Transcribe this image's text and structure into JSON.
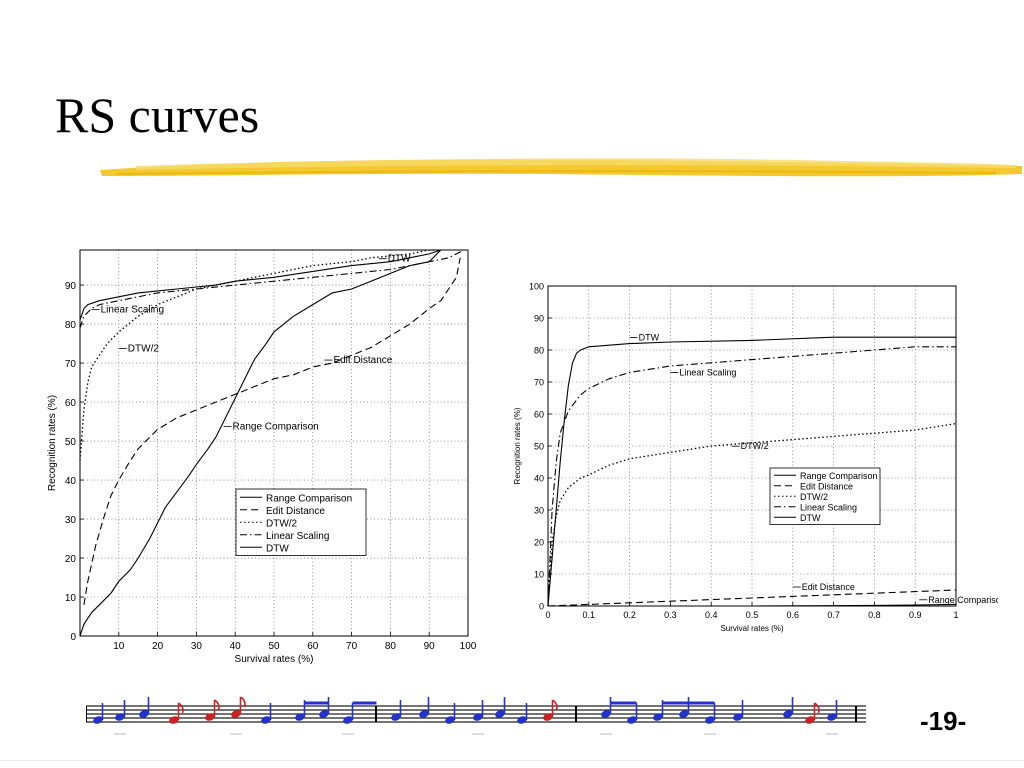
{
  "slide": {
    "title": "RS curves",
    "page_number": "-19-",
    "accent_color": "#f2c318",
    "note_colors": [
      "#2233cc",
      "#cc2222"
    ]
  },
  "chart_data": [
    {
      "type": "line",
      "xlabel": "Survival rates (%)",
      "ylabel": "Recognition rates (%)",
      "xlim": [
        0,
        100
      ],
      "ylim": [
        0,
        99
      ],
      "xticks": [
        10,
        20,
        30,
        40,
        50,
        60,
        70,
        80,
        90,
        100
      ],
      "yticks": [
        0,
        10,
        20,
        30,
        40,
        50,
        60,
        70,
        80,
        90
      ],
      "grid": true,
      "legend_position": "bottom-center",
      "series": [
        {
          "name": "Range Comparison",
          "style": "solid",
          "x": [
            0,
            1,
            3,
            5,
            8,
            10,
            13,
            15,
            18,
            20,
            22,
            25,
            28,
            30,
            33,
            35,
            37,
            40,
            43,
            45,
            48,
            50,
            55,
            60,
            65,
            70,
            75,
            80,
            85,
            90,
            93
          ],
          "y": [
            0,
            3,
            6,
            8,
            11,
            14,
            17,
            20,
            25,
            29,
            33,
            37,
            41,
            44,
            48,
            51,
            55,
            61,
            67,
            71,
            75,
            78,
            82,
            85,
            88,
            89,
            91,
            93,
            95,
            96,
            99
          ]
        },
        {
          "name": "Edit Distance",
          "style": "dashed",
          "x": [
            1,
            2,
            4,
            6,
            8,
            10,
            13,
            15,
            18,
            20,
            25,
            30,
            35,
            40,
            45,
            50,
            55,
            60,
            65,
            70,
            75,
            80,
            85,
            90,
            93,
            95,
            97,
            98
          ],
          "y": [
            8,
            14,
            23,
            30,
            36,
            40,
            45,
            48,
            51,
            53,
            56,
            58,
            60,
            62,
            64,
            66,
            67,
            69,
            70,
            72,
            74,
            77,
            80,
            84,
            86,
            89,
            92,
            97
          ]
        },
        {
          "name": "DTW/2",
          "style": "dotted",
          "x": [
            0,
            1,
            2,
            3,
            5,
            7,
            10,
            15,
            20,
            25,
            30,
            35,
            40,
            45,
            50,
            55,
            60,
            65,
            70,
            75,
            80,
            85,
            90,
            92
          ],
          "y": [
            45,
            58,
            65,
            69,
            72,
            75,
            78,
            82,
            85,
            87,
            89,
            90,
            91,
            92,
            93,
            94,
            95,
            95.5,
            96,
            97,
            97.5,
            98,
            99,
            99
          ]
        },
        {
          "name": "Linear Scaling",
          "style": "dashdot",
          "x": [
            0,
            1,
            3,
            5,
            10,
            15,
            20,
            25,
            30,
            40,
            50,
            60,
            70,
            80,
            85,
            90,
            95,
            99
          ],
          "y": [
            79,
            82,
            84,
            85,
            86,
            87,
            88,
            88.5,
            89,
            90,
            91,
            92,
            93,
            94,
            95,
            96,
            97,
            99
          ]
        },
        {
          "name": "DTW",
          "style": "solid",
          "x": [
            0,
            1,
            2,
            5,
            10,
            15,
            20,
            25,
            30,
            35,
            40,
            50,
            60,
            70,
            80,
            85,
            90,
            93
          ],
          "y": [
            81,
            84,
            85,
            86,
            87,
            88,
            88.5,
            89,
            89.5,
            90,
            91,
            92,
            93.5,
            95,
            96,
            97,
            98,
            99
          ]
        }
      ],
      "annotations": [
        {
          "text": "DTW",
          "x": 77,
          "y": 96
        },
        {
          "text": "Linear Scaling",
          "x": 3,
          "y": 83
        },
        {
          "text": "DTW/2",
          "x": 10,
          "y": 73
        },
        {
          "text": "Edit Distance",
          "x": 63,
          "y": 70
        },
        {
          "text": "Range Comparison",
          "x": 37,
          "y": 53
        }
      ]
    },
    {
      "type": "line",
      "xlabel": "Survival rates (%)",
      "ylabel": "Recognition rates (%)",
      "xlim": [
        0,
        1
      ],
      "ylim": [
        0,
        100
      ],
      "xticks": [
        0,
        0.1,
        0.2,
        0.3,
        0.4,
        0.5,
        0.6,
        0.7,
        0.8,
        0.9,
        1
      ],
      "yticks": [
        0,
        10,
        20,
        30,
        40,
        50,
        60,
        70,
        80,
        90,
        100
      ],
      "grid": true,
      "legend_position": "center-right",
      "series": [
        {
          "name": "Range Comparison",
          "style": "solid",
          "x": [
            0,
            0.5,
            0.7,
            0.8,
            0.9,
            1
          ],
          "y": [
            0,
            0,
            0.1,
            0.2,
            0.3,
            0.5
          ]
        },
        {
          "name": "Edit Distance",
          "style": "dashed",
          "x": [
            0,
            0.1,
            0.2,
            0.3,
            0.4,
            0.5,
            0.6,
            0.7,
            0.8,
            0.9,
            1
          ],
          "y": [
            0,
            0.5,
            1,
            1.5,
            2,
            2.5,
            3,
            3.5,
            4,
            4.5,
            5
          ]
        },
        {
          "name": "DTW/2",
          "style": "dotted",
          "x": [
            0,
            0.01,
            0.02,
            0.03,
            0.05,
            0.08,
            0.1,
            0.15,
            0.2,
            0.3,
            0.4,
            0.5,
            0.6,
            0.7,
            0.8,
            0.9,
            1
          ],
          "y": [
            0,
            20,
            28,
            33,
            37,
            40,
            41,
            44,
            46,
            48,
            50,
            51,
            52,
            53,
            54,
            55,
            57
          ]
        },
        {
          "name": "Linear Scaling",
          "style": "dashdot",
          "x": [
            0,
            0.01,
            0.02,
            0.03,
            0.05,
            0.08,
            0.1,
            0.15,
            0.2,
            0.3,
            0.4,
            0.5,
            0.6,
            0.7,
            0.8,
            0.9,
            1
          ],
          "y": [
            0,
            30,
            45,
            54,
            61,
            66,
            68,
            71,
            73,
            75,
            76,
            77,
            78,
            79,
            80,
            81,
            81
          ]
        },
        {
          "name": "DTW",
          "style": "solid",
          "x": [
            0,
            0.01,
            0.02,
            0.03,
            0.04,
            0.05,
            0.06,
            0.07,
            0.08,
            0.1,
            0.15,
            0.2,
            0.3,
            0.5,
            0.7,
            1
          ],
          "y": [
            0,
            15,
            30,
            45,
            58,
            69,
            76,
            79,
            80,
            81,
            81.5,
            82,
            82.5,
            83,
            84,
            84
          ]
        }
      ],
      "annotations": [
        {
          "text": "DTW",
          "x": 0.2,
          "y": 83
        },
        {
          "text": "Linear Scaling",
          "x": 0.3,
          "y": 72
        },
        {
          "text": "DTW/2",
          "x": 0.45,
          "y": 49
        },
        {
          "text": "Edit Distance",
          "x": 0.6,
          "y": 5
        },
        {
          "text": "Range Comparison",
          "x": 0.91,
          "y": 1
        }
      ]
    }
  ]
}
